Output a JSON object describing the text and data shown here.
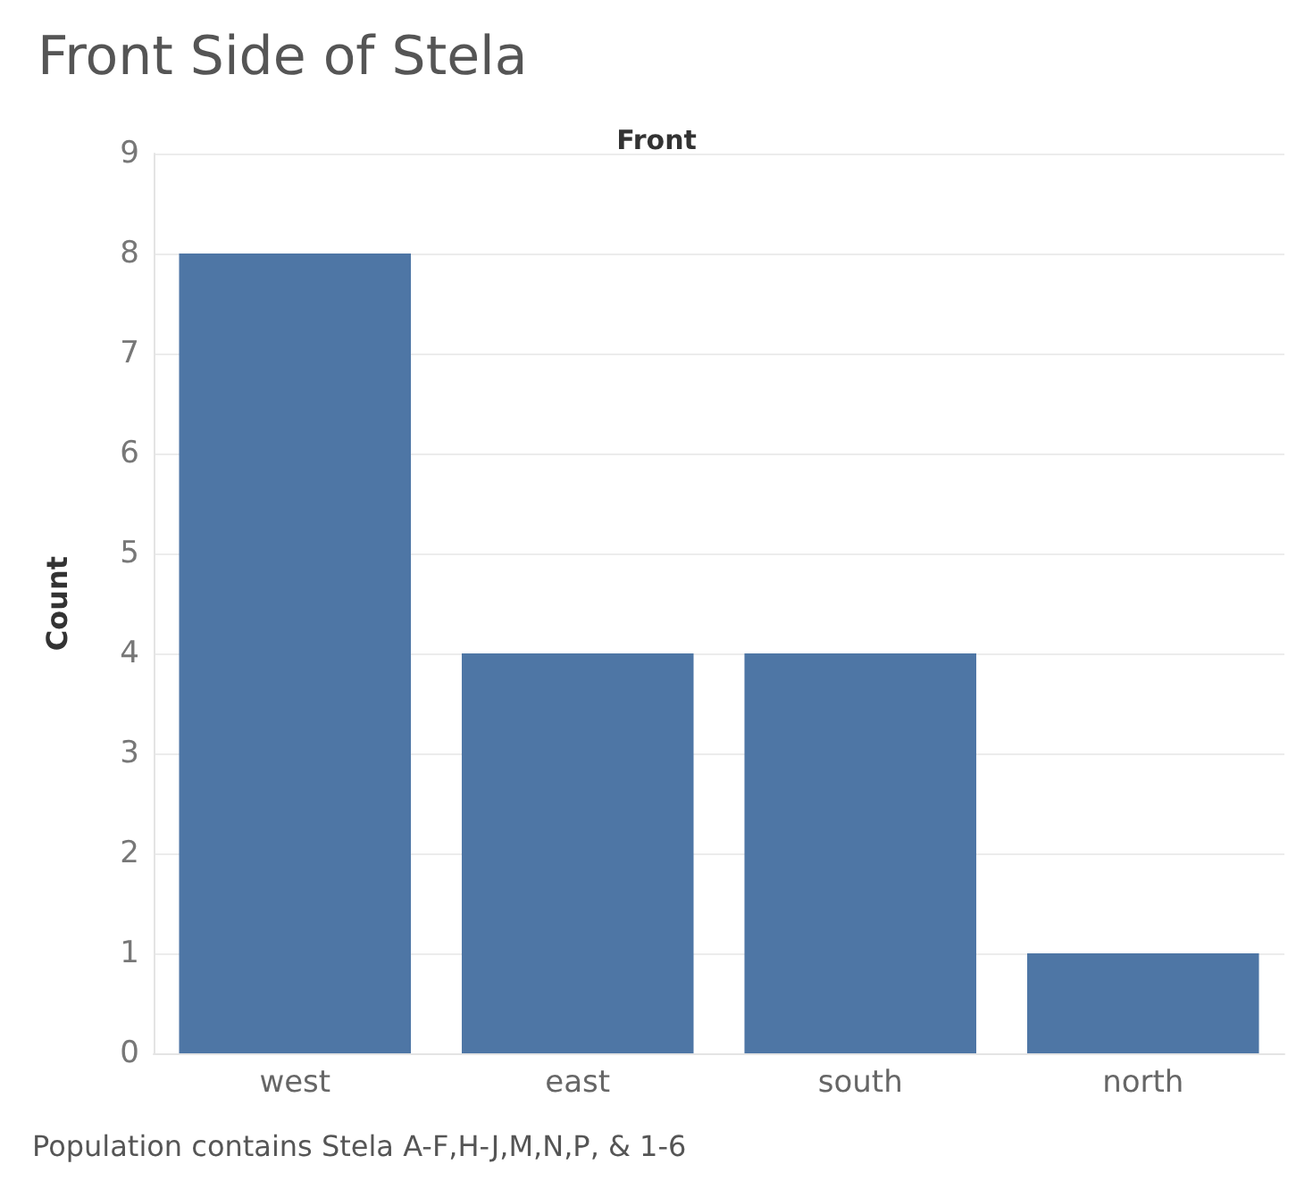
{
  "chart_data": {
    "type": "bar",
    "title": "Front Side of Stela",
    "subtitle": "Front",
    "ylabel": "Count",
    "categories": [
      "west",
      "east",
      "south",
      "north"
    ],
    "values": [
      8,
      4,
      4,
      1
    ],
    "color": "#4e76a5",
    "ylim": [
      0,
      9
    ],
    "yticks": [
      0,
      1,
      2,
      3,
      4,
      5,
      6,
      7,
      8,
      9
    ],
    "grid": "y",
    "annotations": [
      "Population contains Stela A-F,H-J,M,N,P, & 1-6"
    ]
  }
}
